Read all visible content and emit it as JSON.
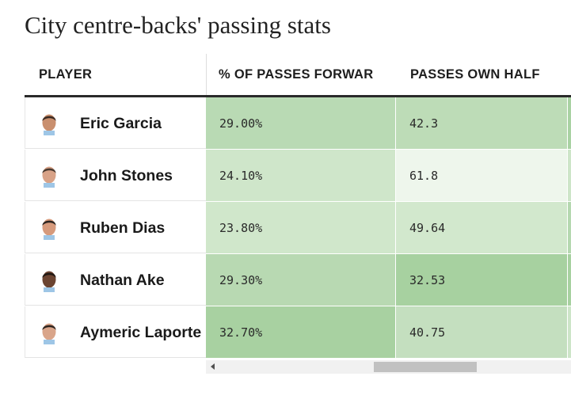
{
  "title": "City centre-backs' passing stats",
  "table": {
    "headers": {
      "player": "PLAYER",
      "col1": "% OF PASSES FORWAR",
      "col2": "PASSES OWN HALF"
    },
    "rows": [
      {
        "name": "Eric Garcia",
        "pct_forward": "29.00%",
        "own_half": "42.3",
        "avatar": "face-icon",
        "pct_color": "#b9dab4",
        "own_color": "#bddcb7",
        "next_color": "#a9d2a3"
      },
      {
        "name": "John Stones",
        "pct_forward": "24.10%",
        "own_half": "61.8",
        "avatar": "face-icon",
        "pct_color": "#cfe6ca",
        "own_color": "#eef6ec",
        "next_color": "#cde5c8"
      },
      {
        "name": "Ruben Dias",
        "pct_forward": "23.80%",
        "own_half": "49.64",
        "avatar": "face-icon",
        "pct_color": "#d0e7cb",
        "own_color": "#d2e8cd",
        "next_color": "#b5d8b0"
      },
      {
        "name": "Nathan Ake",
        "pct_forward": "29.30%",
        "own_half": "32.53",
        "avatar": "face-icon",
        "pct_color": "#b8d9b2",
        "own_color": "#a7d1a0",
        "next_color": "#a7d1a0"
      },
      {
        "name": "Aymeric Laporte",
        "pct_forward": "32.70%",
        "own_half": "40.75",
        "avatar": "face-icon",
        "pct_color": "#a8d1a1",
        "own_color": "#c4dfbf",
        "next_color": "#cde5c8"
      }
    ]
  },
  "scrollbar": {
    "left_arrow": "scroll-left-icon"
  }
}
